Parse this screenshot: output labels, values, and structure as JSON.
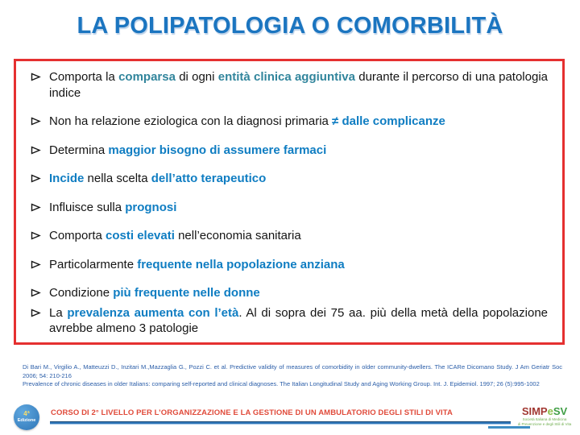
{
  "title": "LA POLIPATOLOGIA O COMORBILITÀ",
  "colors": {
    "title_blue": "#1B75C0",
    "box_border_red": "#E53030",
    "highlight_teal": "#31859C",
    "highlight_blue": "#0F7DC2",
    "citation_blue": "#2A5DA8",
    "course_red": "#E04A3A",
    "logo_simp_red": "#A13832",
    "logo_green": "#3F9E45"
  },
  "box": {
    "bullets": [
      {
        "segments": [
          {
            "text": "Comporta la ",
            "style": "normal"
          },
          {
            "text": "comparsa",
            "style": "teal"
          },
          {
            "text": " di ogni ",
            "style": "normal"
          },
          {
            "text": "entità clinica aggiuntiva",
            "style": "teal"
          },
          {
            "text": " durante il percorso di una patologia indice",
            "style": "normal"
          }
        ]
      },
      {
        "segments": [
          {
            "text": "Non ha relazione eziologica con la diagnosi primaria ",
            "style": "normal"
          },
          {
            "text": "≠ dalle complicanze",
            "style": "blue"
          }
        ]
      },
      {
        "segments": [
          {
            "text": "Determina ",
            "style": "normal"
          },
          {
            "text": "maggior bisogno di assumere farmaci",
            "style": "blue"
          }
        ]
      },
      {
        "segments": [
          {
            "text": "Incide",
            "style": "blue"
          },
          {
            "text": " nella scelta ",
            "style": "normal"
          },
          {
            "text": "dell’atto terapeutico",
            "style": "blue"
          }
        ]
      },
      {
        "segments": [
          {
            "text": "Influisce sulla ",
            "style": "normal"
          },
          {
            "text": "prognosi",
            "style": "blue"
          }
        ]
      },
      {
        "segments": [
          {
            "text": "Comporta ",
            "style": "normal"
          },
          {
            "text": "costi elevati",
            "style": "blue"
          },
          {
            "text": " nell’economia sanitaria",
            "style": "normal"
          }
        ]
      },
      {
        "segments": [
          {
            "text": "Particolarmente ",
            "style": "normal"
          },
          {
            "text": "frequente nella popolazione anziana",
            "style": "blue"
          }
        ]
      },
      {
        "segments": [
          {
            "text": "Condizione ",
            "style": "normal"
          },
          {
            "text": "più frequente nelle donne",
            "style": "blue"
          }
        ]
      },
      {
        "segments": [
          {
            "text": "La ",
            "style": "normal"
          },
          {
            "text": "prevalenza aumenta con l’età",
            "style": "blue"
          },
          {
            "text": ". Al di sopra dei 75 aa. più della metà della popolazione avrebbe almeno 3 patologie",
            "style": "normal"
          }
        ]
      }
    ]
  },
  "citations": {
    "citation1": "Di Bari M., Virgilio A., Matteuzzi D., Inzitari M.,Mazzaglia G., Pozzi C. et al. Predictive validity of measures of comorbidity in older community-dwellers. The ICARe Dicomano Study. J Am Geriatr Soc 2006; 54: 210-216",
    "citation2": "Prevalence of chronic diseases in older Italians: comparing self-reported and clinical diagnoses. The Italian Longitudinal Study and Aging Working Group. Int. J. Epidemiol. 1997; 26 (5):995-1002"
  },
  "footer": {
    "edition_badge": {
      "line1": "4ª",
      "line2": "Edizione"
    },
    "course_title": "CORSO DI 2° LIVELLO PER L’ORGANIZZAZIONE E LA GESTIONE DI UN AMBULATORIO DEGLI STILI DI VITA",
    "logo": {
      "part1": "SIMP",
      "part2": "e",
      "part3": "SV",
      "tagline_line1": "Società Italiana di Medicina",
      "tagline_line2": "di Prevenzione e degli Stili di Vita"
    }
  }
}
